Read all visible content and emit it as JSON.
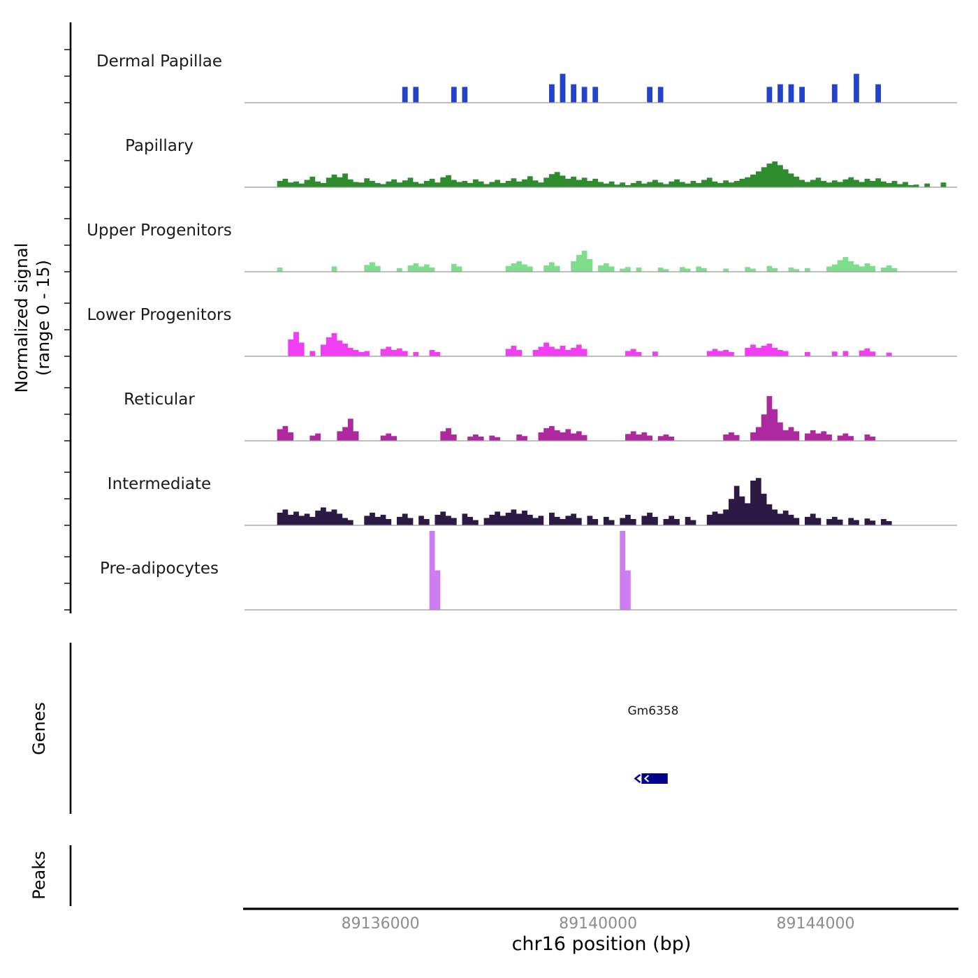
{
  "figure": {
    "y_axis_label_line1": "Normalized signal",
    "y_axis_label_line2": "(range 0 - 15)",
    "genes_section_label": "Genes",
    "peaks_section_label": "Peaks"
  },
  "chart_data": {
    "type": "area",
    "xlabel": "chr16 position (bp)",
    "ylabel": "Normalized signal (range 0 - 15)",
    "x_start_bp": 89133500,
    "bin_size_bp": 100,
    "n_bins": 131,
    "ylim": [
      0,
      15
    ],
    "baseline_color": "#999999",
    "tick_label_color": "#8c8c8c",
    "x_ticks": [
      {
        "bp": 89136000,
        "label": "89136000"
      },
      {
        "bp": 89140000,
        "label": "89140000"
      },
      {
        "bp": 89144000,
        "label": "89144000"
      }
    ],
    "tracks": [
      {
        "name": "Dermal Papillae",
        "color": "#2144cb",
        "values": [
          0,
          0,
          0,
          0,
          0,
          0,
          0,
          0,
          0,
          0,
          0,
          0,
          0,
          0,
          0,
          0,
          0,
          0,
          0,
          0,
          0,
          0,
          0,
          0,
          0,
          0,
          0,
          0,
          0,
          3,
          0,
          3,
          0,
          0,
          0,
          0,
          0,
          0,
          3,
          0,
          3,
          0,
          0,
          0,
          0,
          0,
          0,
          0,
          0,
          0,
          0,
          0,
          0,
          0,
          0,
          0,
          3.5,
          0,
          5.5,
          0,
          3.5,
          0,
          3,
          0,
          3,
          0,
          0,
          0,
          0,
          0,
          0,
          0,
          0,
          0,
          3,
          0,
          3,
          0,
          0,
          0,
          0,
          0,
          0,
          0,
          0,
          0,
          0,
          0,
          0,
          0,
          0,
          0,
          0,
          0,
          0,
          0,
          3,
          0,
          3.5,
          0,
          3.5,
          0,
          3,
          0,
          0,
          0,
          0,
          0,
          3.5,
          0,
          0,
          0,
          5.5,
          0,
          0,
          0,
          3.5,
          0,
          0,
          0,
          0,
          0,
          0,
          0,
          0,
          0,
          0,
          0,
          0,
          0,
          0
        ]
      },
      {
        "name": "Papillary",
        "color": "#2e8b2e",
        "values": [
          0,
          0,
          0,
          0,
          0,
          0,
          1.2,
          1.6,
          0.9,
          1.1,
          0.7,
          1.4,
          2.0,
          1.1,
          0.8,
          1.8,
          2.4,
          1.9,
          2.6,
          1.5,
          1.0,
          0.9,
          1.7,
          1.2,
          0.8,
          0.6,
          1.1,
          1.5,
          0.9,
          1.3,
          1.8,
          1.0,
          0.7,
          1.2,
          1.6,
          0.9,
          1.9,
          2.3,
          1.4,
          1.0,
          1.2,
          0.8,
          1.5,
          1.1,
          0.6,
          1.0,
          1.4,
          0.8,
          1.2,
          1.7,
          1.1,
          1.5,
          2.1,
          1.3,
          0.9,
          1.8,
          2.5,
          2.9,
          2.2,
          1.6,
          2.0,
          1.4,
          1.8,
          1.2,
          1.6,
          1.0,
          0.7,
          1.1,
          0.5,
          0.9,
          0.4,
          0.8,
          1.2,
          0.7,
          1.0,
          1.4,
          0.9,
          0.6,
          1.1,
          1.5,
          1.0,
          0.7,
          1.2,
          0.8,
          1.4,
          1.8,
          1.1,
          0.8,
          1.3,
          0.9,
          1.2,
          1.6,
          1.9,
          2.4,
          3.0,
          3.8,
          4.5,
          4.9,
          4.2,
          3.4,
          2.6,
          2.0,
          1.4,
          1.0,
          1.4,
          1.8,
          1.2,
          0.9,
          1.3,
          1.0,
          1.5,
          1.9,
          1.4,
          1.0,
          1.6,
          1.2,
          1.7,
          1.1,
          0.8,
          1.2,
          0.6,
          1.0,
          0.4,
          0.5,
          0,
          0.7,
          0,
          0,
          0.9,
          0,
          0
        ]
      },
      {
        "name": "Upper Progenitors",
        "color": "#80dd8d",
        "values": [
          0,
          0,
          0,
          0,
          0,
          0,
          0.8,
          0,
          0,
          0,
          0,
          0,
          0,
          0,
          0,
          0,
          1.0,
          0,
          0,
          0,
          0,
          0,
          1.3,
          1.8,
          1.1,
          0,
          0,
          0,
          0.7,
          0,
          1.2,
          1.6,
          1.0,
          1.4,
          0.8,
          0,
          0,
          0,
          1.5,
          1.0,
          0,
          0,
          0,
          0,
          0,
          0,
          0,
          0,
          1.1,
          1.6,
          2.0,
          1.4,
          1.0,
          0,
          0,
          1.2,
          1.8,
          1.1,
          0,
          0,
          2.0,
          3.2,
          4.0,
          2.4,
          0,
          1.2,
          1.6,
          1.0,
          0,
          0.6,
          0.9,
          0,
          0.8,
          0,
          0,
          0,
          0.8,
          0.5,
          0,
          0,
          0.9,
          0.6,
          0,
          1.0,
          0.7,
          0,
          0,
          0,
          0.6,
          0,
          0,
          0,
          0.9,
          0.6,
          0,
          0,
          1.1,
          0.7,
          0,
          0,
          0.8,
          0.5,
          0,
          0.7,
          0,
          0,
          0,
          1.0,
          1.4,
          2.2,
          2.8,
          2.0,
          1.4,
          1.0,
          1.6,
          1.1,
          0,
          0.8,
          1.2,
          0.7,
          0,
          0,
          0,
          0,
          0,
          0,
          0,
          0,
          0,
          0,
          0,
          0
        ]
      },
      {
        "name": "Lower Progenitors",
        "color": "#f23ef2",
        "values": [
          0,
          0,
          0,
          0,
          0,
          0,
          0,
          0,
          3.2,
          4.6,
          2.6,
          0,
          1.0,
          0,
          2.2,
          3.6,
          4.4,
          3.0,
          2.4,
          1.6,
          1.2,
          0.8,
          1.0,
          0,
          0,
          1.4,
          1.8,
          1.2,
          1.5,
          1.0,
          0,
          0.8,
          0,
          0,
          1.2,
          0.8,
          0,
          0,
          0,
          0,
          0,
          0,
          0,
          0,
          0,
          0,
          0,
          0,
          1.4,
          2.0,
          1.2,
          0,
          0,
          1.2,
          1.8,
          2.6,
          1.8,
          1.4,
          2.0,
          1.2,
          1.6,
          2.2,
          1.4,
          0,
          0,
          0,
          0,
          0,
          0,
          0,
          1.0,
          1.4,
          0.8,
          0,
          0,
          0.9,
          0,
          0,
          0,
          0,
          0,
          0,
          0,
          0,
          0,
          1.0,
          1.4,
          1.0,
          1.2,
          0.8,
          0,
          0,
          1.6,
          2.2,
          1.6,
          2.0,
          2.4,
          1.6,
          1.2,
          1.0,
          0,
          0,
          0,
          0.8,
          0,
          0,
          0,
          0,
          0.9,
          0,
          1.0,
          0,
          0,
          1.1,
          1.5,
          0.9,
          0,
          0,
          0.7,
          0,
          0,
          0,
          0,
          0,
          0,
          0,
          0,
          0,
          0,
          0,
          0
        ]
      },
      {
        "name": "Reticular",
        "color": "#ae28a0",
        "values": [
          0,
          0,
          0,
          0,
          0,
          0,
          2.2,
          2.8,
          1.6,
          0,
          0,
          0,
          1.0,
          1.4,
          0,
          0,
          0,
          1.8,
          2.6,
          4.2,
          1.8,
          0,
          0,
          0,
          0,
          1.0,
          1.4,
          0.9,
          0,
          0,
          0,
          0,
          0,
          0,
          0,
          0,
          1.8,
          2.4,
          1.2,
          0,
          0,
          0.8,
          1.2,
          0.8,
          0,
          1.0,
          0.7,
          0,
          0,
          0,
          1.2,
          0.9,
          0,
          0,
          1.6,
          2.4,
          2.8,
          2.0,
          1.6,
          2.2,
          1.4,
          1.8,
          1.1,
          0,
          0,
          0,
          0,
          0,
          0,
          0,
          1.3,
          1.8,
          1.2,
          1.6,
          1.0,
          0,
          0.9,
          1.2,
          0.8,
          0,
          0,
          0,
          0,
          0,
          0,
          0,
          0,
          0,
          1.2,
          1.6,
          1.1,
          0,
          0,
          1.6,
          2.6,
          5.0,
          8.5,
          6.0,
          3.5,
          2.0,
          2.6,
          1.8,
          0,
          1.4,
          2.0,
          1.4,
          1.8,
          1.2,
          0,
          1.0,
          1.4,
          0.9,
          0,
          0,
          1.2,
          0.8,
          0,
          0,
          0,
          0,
          0,
          0,
          0,
          0,
          0,
          0,
          0,
          0,
          0,
          0,
          0
        ]
      },
      {
        "name": "Intermediate",
        "color": "#2c1a45",
        "values": [
          0,
          0,
          0,
          0,
          0,
          0,
          2.4,
          3.0,
          2.0,
          2.6,
          1.8,
          2.2,
          1.6,
          2.8,
          3.4,
          2.6,
          3.0,
          2.2,
          1.4,
          1.0,
          0,
          0,
          1.8,
          2.4,
          1.6,
          2.0,
          1.2,
          0,
          1.6,
          2.2,
          1.4,
          0,
          1.8,
          1.2,
          0,
          2.0,
          2.6,
          1.8,
          1.4,
          0,
          2.2,
          1.6,
          1.0,
          0,
          1.4,
          2.0,
          2.6,
          1.8,
          2.4,
          3.0,
          2.2,
          2.8,
          2.0,
          1.4,
          1.8,
          0,
          2.4,
          1.6,
          1.2,
          1.8,
          2.2,
          1.4,
          0,
          1.8,
          1.2,
          0,
          1.6,
          1.0,
          0,
          1.4,
          2.0,
          1.2,
          0,
          1.8,
          2.4,
          1.6,
          0,
          1.2,
          1.8,
          1.2,
          0,
          1.6,
          1.0,
          0,
          0,
          2.0,
          2.6,
          2.2,
          3.0,
          5.0,
          7.5,
          5.5,
          4.2,
          8.5,
          9.0,
          6.0,
          4.0,
          3.0,
          2.2,
          2.8,
          2.0,
          1.4,
          0,
          1.6,
          2.2,
          1.4,
          0,
          1.2,
          1.6,
          1.1,
          0,
          1.4,
          1.0,
          0,
          1.3,
          0.9,
          0,
          1.2,
          0.8,
          0,
          0,
          0,
          0,
          0,
          0,
          0,
          0,
          0,
          0,
          0,
          0
        ]
      },
      {
        "name": "Pre-adipocytes",
        "color": "#cc7ef0",
        "values": [
          0,
          0,
          0,
          0,
          0,
          0,
          0,
          0,
          0,
          0,
          0,
          0,
          0,
          0,
          0,
          0,
          0,
          0,
          0,
          0,
          0,
          0,
          0,
          0,
          0,
          0,
          0,
          0,
          0,
          0,
          0,
          0,
          0,
          0,
          15,
          7.5,
          0,
          0,
          0,
          0,
          0,
          0,
          0,
          0,
          0,
          0,
          0,
          0,
          0,
          0,
          0,
          0,
          0,
          0,
          0,
          0,
          0,
          0,
          0,
          0,
          0,
          0,
          0,
          0,
          0,
          0,
          0,
          0,
          0,
          15,
          7.5,
          0,
          0,
          0,
          0,
          0,
          0,
          0,
          0,
          0,
          0,
          0,
          0,
          0,
          0,
          0,
          0,
          0,
          0,
          0,
          0,
          0,
          0,
          0,
          0,
          0,
          0,
          0,
          0,
          0,
          0,
          0,
          0,
          0,
          0,
          0,
          0,
          0,
          0,
          0,
          0,
          0,
          0,
          0,
          0,
          0,
          0,
          0,
          0,
          0,
          0,
          0,
          0,
          0,
          0,
          0,
          0,
          0,
          0,
          0
        ]
      }
    ]
  },
  "genes": {
    "items": [
      {
        "name": "Gm6358",
        "start_bp": 89140800,
        "end_bp": 89141280,
        "strand": "-",
        "color": "#00008b"
      }
    ]
  },
  "peaks": {
    "items": []
  }
}
